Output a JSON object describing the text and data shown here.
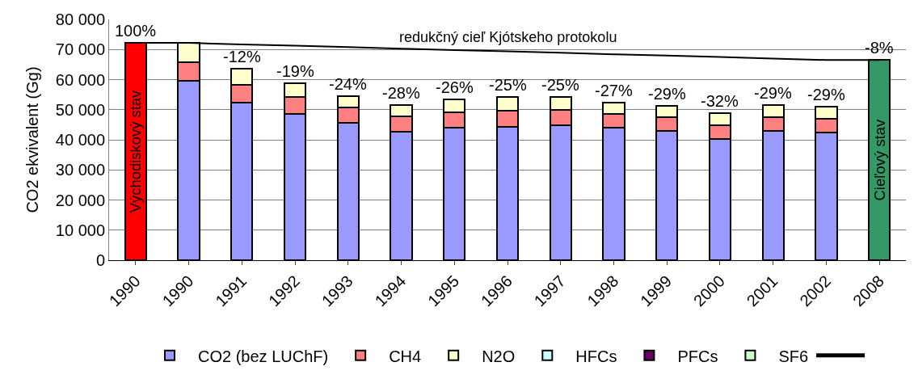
{
  "chart_data": {
    "type": "bar",
    "stacked": true,
    "ylabel": "CO2 ekvivalent (Gg)",
    "categories": [
      "1990",
      "1990",
      "1991",
      "1992",
      "1993",
      "1994",
      "1995",
      "1996",
      "1997",
      "1998",
      "1999",
      "2000",
      "2001",
      "2002",
      "2008"
    ],
    "series": [
      {
        "name": "Východiskový stav",
        "color": "#ff0000",
        "values": [
          72200,
          null,
          null,
          null,
          null,
          null,
          null,
          null,
          null,
          null,
          null,
          null,
          null,
          null,
          null
        ]
      },
      {
        "name": "CO2 (bez LUChF)",
        "color": "#9999ff",
        "values": [
          null,
          59500,
          52300,
          48600,
          45700,
          42600,
          44000,
          44400,
          44800,
          43900,
          42900,
          40400,
          42900,
          42400,
          null
        ]
      },
      {
        "name": "CH4",
        "color": "#ff8080",
        "values": [
          null,
          6400,
          6000,
          5500,
          5100,
          5200,
          5200,
          5300,
          5100,
          4700,
          4600,
          4500,
          4500,
          4500,
          null
        ]
      },
      {
        "name": "N2O",
        "color": "#ffffcc",
        "values": [
          null,
          6300,
          5400,
          4600,
          3800,
          3800,
          4200,
          4400,
          4200,
          3800,
          3900,
          3900,
          4100,
          4100,
          null
        ]
      },
      {
        "name": "HFCs",
        "color": "#ccffff",
        "values": [
          null,
          null,
          null,
          null,
          null,
          null,
          null,
          null,
          null,
          null,
          null,
          null,
          null,
          null,
          null
        ]
      },
      {
        "name": "PFCs",
        "color": "#660066",
        "values": [
          null,
          null,
          null,
          null,
          null,
          null,
          null,
          null,
          null,
          null,
          null,
          null,
          null,
          null,
          null
        ]
      },
      {
        "name": "SF6",
        "color": "#ccffcc",
        "values": [
          null,
          null,
          null,
          null,
          null,
          null,
          null,
          null,
          null,
          null,
          null,
          null,
          null,
          null,
          null
        ]
      },
      {
        "name": "Cieľový stav",
        "color": "#339966",
        "values": [
          null,
          null,
          null,
          null,
          null,
          null,
          null,
          null,
          null,
          null,
          null,
          null,
          null,
          null,
          66500
        ]
      },
      {
        "type": "line",
        "color": "#000000",
        "values": [
          72200,
          72200,
          71700,
          71300,
          70800,
          70300,
          69800,
          69400,
          68900,
          68400,
          68000,
          67500,
          67000,
          66500,
          66500
        ]
      }
    ],
    "annotations": [
      "redukčný cieľ Kjótskeho protokolu",
      {
        "text": "100%",
        "x": "1990",
        "y": 72200
      },
      {
        "text": "-12%",
        "x": "1991",
        "y": 63700
      },
      {
        "text": "-19%",
        "x": "1992",
        "y": 58700
      },
      {
        "text": "-24%",
        "x": "1993",
        "y": 54600
      },
      {
        "text": "-28%",
        "x": "1994",
        "y": 51600
      },
      {
        "text": "-26%",
        "x": "1995",
        "y": 53400
      },
      {
        "text": "-25%",
        "x": "1996",
        "y": 54100
      },
      {
        "text": "-25%",
        "x": "1997",
        "y": 54100
      },
      {
        "text": "-27%",
        "x": "1998",
        "y": 52400
      },
      {
        "text": "-29%",
        "x": "1999",
        "y": 51400
      },
      {
        "text": "-32%",
        "x": "2000",
        "y": 48800
      },
      {
        "text": "-29%",
        "x": "2001",
        "y": 51500
      },
      {
        "text": "-29%",
        "x": "2002",
        "y": 51000
      },
      {
        "text": "-8%",
        "x": "2008",
        "y": 66500
      }
    ],
    "ylim": [
      0,
      80000
    ],
    "yticks": [
      {
        "value": 0,
        "label": "0"
      },
      {
        "value": 10000,
        "label": "10 000"
      },
      {
        "value": 20000,
        "label": "20 000"
      },
      {
        "value": 30000,
        "label": "30 000"
      },
      {
        "value": 40000,
        "label": "40 000"
      },
      {
        "value": 50000,
        "label": "50 000"
      },
      {
        "value": 60000,
        "label": "60 000"
      },
      {
        "value": 70000,
        "label": "70 000"
      },
      {
        "value": 80000,
        "label": "80 000"
      }
    ],
    "grid": "y",
    "legend": "bottom"
  }
}
